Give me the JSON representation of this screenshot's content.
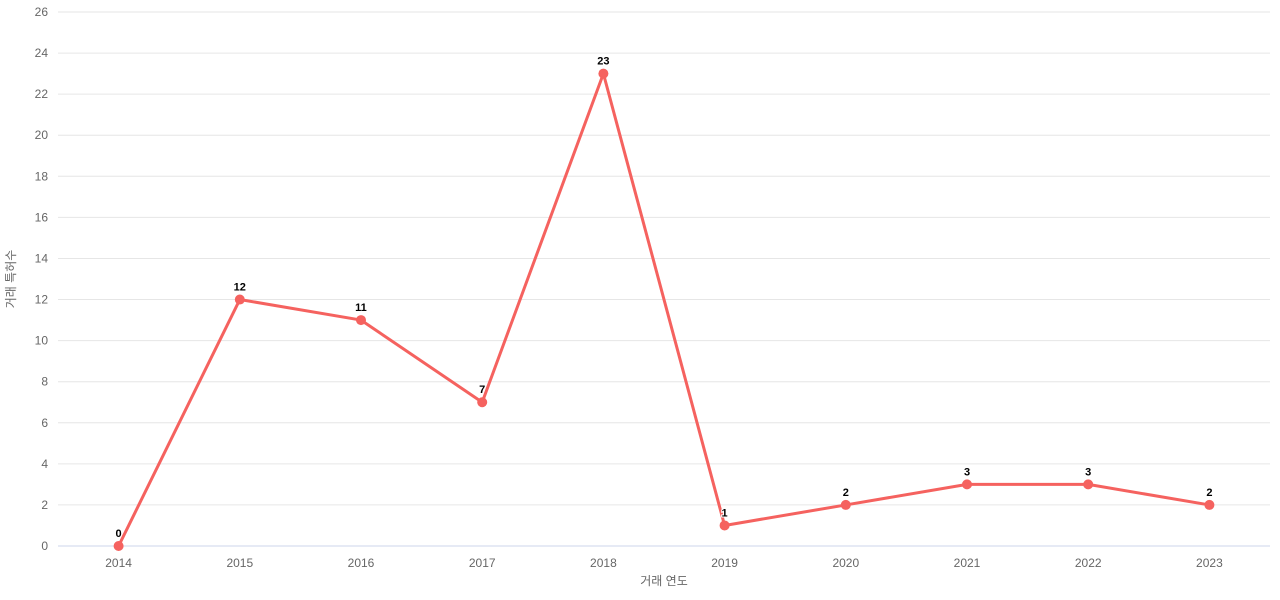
{
  "chart_data": {
    "type": "line",
    "title": "",
    "xlabel": "거래 연도",
    "ylabel": "거래 특허수",
    "categories": [
      "2014",
      "2015",
      "2016",
      "2017",
      "2018",
      "2019",
      "2020",
      "2021",
      "2022",
      "2023"
    ],
    "values": [
      0,
      12,
      11,
      7,
      23,
      1,
      2,
      3,
      3,
      2
    ],
    "data_labels": [
      "0",
      "12",
      "11",
      "7",
      "23",
      "1",
      "2",
      "3",
      "3",
      "2"
    ],
    "ylim": [
      0,
      26
    ],
    "ytick_step": 2,
    "grid": true,
    "legend": false,
    "colors": {
      "series": "#F5625F",
      "gridline": "#E6E6E6",
      "axis_line": "#CCD6EB",
      "tick_label": "#666666",
      "axis_title": "#666666",
      "data_label": "#000000",
      "data_label_halo": "#FFFFFF",
      "background": "#FFFFFF"
    }
  }
}
